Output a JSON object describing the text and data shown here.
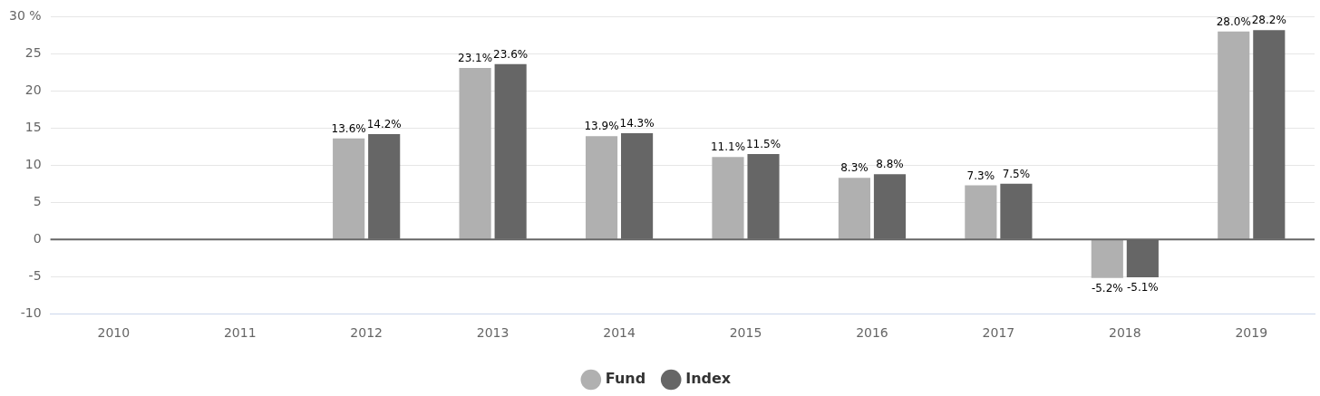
{
  "chart_data": {
    "type": "bar",
    "categories": [
      "2010",
      "2011",
      "2012",
      "2013",
      "2014",
      "2015",
      "2016",
      "2017",
      "2018",
      "2019"
    ],
    "series": [
      {
        "name": "Fund",
        "color": "#b0b0b0",
        "values": [
          null,
          null,
          13.6,
          23.1,
          13.9,
          11.1,
          8.3,
          7.3,
          -5.2,
          28.0
        ],
        "value_labels": [
          null,
          null,
          "13.6%",
          "23.1%",
          "13.9%",
          "11.1%",
          "8.3%",
          "7.3%",
          "-5.2%",
          "28.0%"
        ]
      },
      {
        "name": "Index",
        "color": "#666666",
        "values": [
          null,
          null,
          14.2,
          23.6,
          14.3,
          11.5,
          8.8,
          7.5,
          -5.1,
          28.2
        ],
        "value_labels": [
          null,
          null,
          "14.2%",
          "23.6%",
          "14.3%",
          "11.5%",
          "8.8%",
          "7.5%",
          "-5.1%",
          "28.2%"
        ]
      }
    ],
    "ylim": [
      -10,
      30
    ],
    "yticks": [
      -10,
      -5,
      0,
      5,
      10,
      15,
      20,
      25,
      {
        "value": 30,
        "label": "30 %"
      }
    ],
    "grid": "y",
    "legend": "bottom",
    "ref_lines": [
      {
        "axis": "y",
        "value": 0,
        "color": "#666666"
      }
    ]
  }
}
